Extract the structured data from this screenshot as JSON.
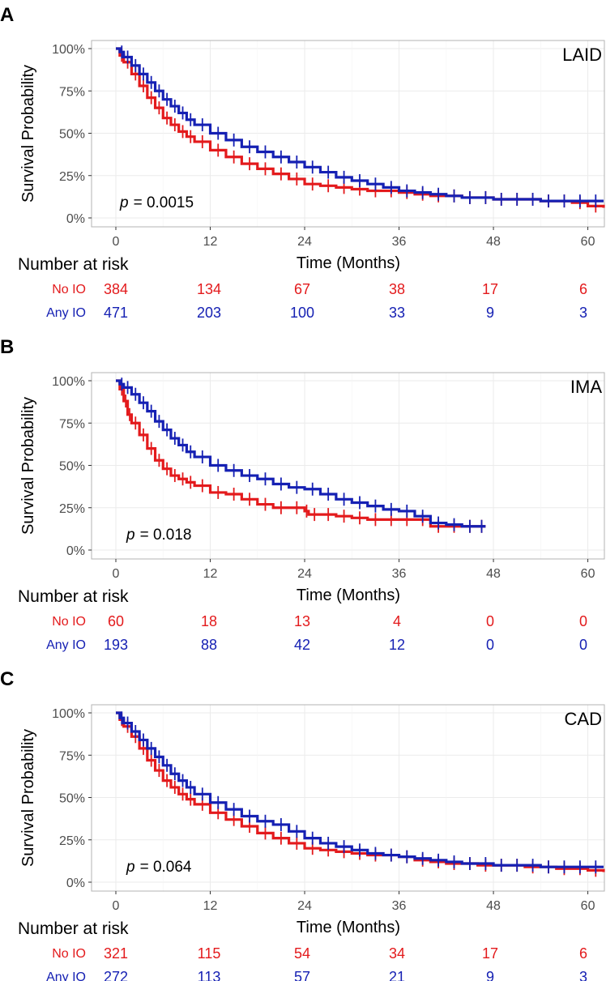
{
  "chart_data": [
    {
      "type": "line",
      "panel_letter": "A",
      "tag": "LAID",
      "p_label": "p",
      "p_value": "= 0.0015",
      "xlabel": "Time (Months)",
      "ylabel": "Survival Probability",
      "xlim": [
        0,
        62
      ],
      "ylim": [
        0,
        1
      ],
      "x_ticks": [
        0,
        12,
        24,
        36,
        48,
        60
      ],
      "x_tick_labels": [
        "0",
        "12",
        "24",
        "36",
        "48",
        "60"
      ],
      "y_ticks": [
        0,
        0.25,
        0.5,
        0.75,
        1.0
      ],
      "y_tick_labels": [
        "0%",
        "25%",
        "50%",
        "75%",
        "100%"
      ],
      "grid": true,
      "series": [
        {
          "name": "No IO",
          "color": "#e31a1c",
          "x": [
            0,
            0.5,
            1,
            2,
            3,
            4,
            5,
            6,
            7,
            8,
            9,
            10,
            12,
            14,
            16,
            18,
            20,
            22,
            24,
            26,
            28,
            30,
            32,
            34,
            36,
            38,
            40,
            42,
            44,
            46,
            48,
            50,
            52,
            54,
            56,
            58,
            60,
            62
          ],
          "y": [
            1.0,
            0.96,
            0.92,
            0.85,
            0.78,
            0.71,
            0.65,
            0.59,
            0.55,
            0.51,
            0.48,
            0.45,
            0.4,
            0.36,
            0.32,
            0.29,
            0.26,
            0.23,
            0.2,
            0.19,
            0.18,
            0.17,
            0.16,
            0.16,
            0.15,
            0.14,
            0.13,
            0.13,
            0.12,
            0.12,
            0.11,
            0.11,
            0.11,
            0.1,
            0.1,
            0.09,
            0.07,
            0.06
          ]
        },
        {
          "name": "Any IO",
          "color": "#1520b3",
          "x": [
            0,
            0.5,
            1,
            2,
            3,
            4,
            5,
            6,
            7,
            8,
            9,
            10,
            12,
            14,
            16,
            18,
            20,
            22,
            24,
            26,
            28,
            30,
            32,
            34,
            36,
            38,
            40,
            42,
            44,
            46,
            48,
            50,
            52,
            54,
            56,
            58,
            60,
            62
          ],
          "y": [
            1.0,
            0.98,
            0.95,
            0.9,
            0.85,
            0.8,
            0.75,
            0.7,
            0.66,
            0.62,
            0.58,
            0.55,
            0.5,
            0.46,
            0.42,
            0.39,
            0.36,
            0.33,
            0.3,
            0.27,
            0.24,
            0.22,
            0.2,
            0.18,
            0.16,
            0.15,
            0.14,
            0.13,
            0.12,
            0.12,
            0.11,
            0.11,
            0.11,
            0.1,
            0.1,
            0.1,
            0.1,
            0.1
          ]
        }
      ],
      "risk_table": {
        "title": "Number at risk",
        "rows": [
          {
            "name": "No IO",
            "color": "#e31a1c",
            "values": [
              "384",
              "134",
              "67",
              "38",
              "17",
              "6"
            ]
          },
          {
            "name": "Any IO",
            "color": "#1520b3",
            "values": [
              "471",
              "203",
              "100",
              "33",
              "9",
              "3"
            ]
          }
        ]
      }
    },
    {
      "type": "line",
      "panel_letter": "B",
      "tag": "IMA",
      "p_label": "p",
      "p_value": "= 0.018",
      "xlabel": "Time (Months)",
      "ylabel": "Survival Probability",
      "xlim": [
        0,
        62
      ],
      "ylim": [
        0,
        1
      ],
      "x_ticks": [
        0,
        12,
        24,
        36,
        48,
        60
      ],
      "x_tick_labels": [
        "0",
        "12",
        "24",
        "36",
        "48",
        "60"
      ],
      "y_ticks": [
        0,
        0.25,
        0.5,
        0.75,
        1.0
      ],
      "y_tick_labels": [
        "0%",
        "25%",
        "50%",
        "75%",
        "100%"
      ],
      "grid": true,
      "series": [
        {
          "name": "No IO",
          "color": "#e31a1c",
          "x": [
            0,
            0.5,
            1,
            1.5,
            2,
            3,
            4,
            5,
            6,
            7,
            8,
            9,
            10,
            12,
            14,
            16,
            18,
            20,
            22,
            24,
            24.5,
            26,
            28,
            30,
            32,
            34,
            36,
            38,
            40,
            42,
            44,
            46,
            47
          ],
          "y": [
            1.0,
            0.95,
            0.88,
            0.8,
            0.75,
            0.68,
            0.6,
            0.53,
            0.48,
            0.44,
            0.42,
            0.4,
            0.38,
            0.34,
            0.33,
            0.3,
            0.27,
            0.25,
            0.25,
            0.23,
            0.21,
            0.21,
            0.2,
            0.19,
            0.18,
            0.18,
            0.18,
            0.18,
            0.14,
            0.14,
            0.14,
            0.14,
            0.14
          ]
        },
        {
          "name": "Any IO",
          "color": "#1520b3",
          "x": [
            0,
            0.5,
            1,
            2,
            3,
            4,
            5,
            6,
            7,
            8,
            9,
            10,
            12,
            14,
            16,
            18,
            20,
            22,
            24,
            26,
            28,
            30,
            32,
            34,
            36,
            38,
            40,
            42,
            44,
            46,
            47
          ],
          "y": [
            1.0,
            0.98,
            0.96,
            0.92,
            0.87,
            0.82,
            0.76,
            0.71,
            0.66,
            0.62,
            0.58,
            0.55,
            0.5,
            0.47,
            0.44,
            0.42,
            0.39,
            0.37,
            0.36,
            0.33,
            0.3,
            0.28,
            0.26,
            0.24,
            0.23,
            0.2,
            0.16,
            0.15,
            0.14,
            0.14,
            0.14
          ]
        }
      ],
      "risk_table": {
        "title": "Number at risk",
        "rows": [
          {
            "name": "No IO",
            "color": "#e31a1c",
            "values": [
              "60",
              "18",
              "13",
              "4",
              "0",
              "0"
            ]
          },
          {
            "name": "Any IO",
            "color": "#1520b3",
            "values": [
              "193",
              "88",
              "42",
              "12",
              "0",
              "0"
            ]
          }
        ]
      }
    },
    {
      "type": "line",
      "panel_letter": "C",
      "tag": "CAD",
      "p_label": "p",
      "p_value": "= 0.064",
      "xlabel": "Time (Months)",
      "ylabel": "Survival Probability",
      "xlim": [
        0,
        62
      ],
      "ylim": [
        0,
        1
      ],
      "x_ticks": [
        0,
        12,
        24,
        36,
        48,
        60
      ],
      "x_tick_labels": [
        "0",
        "12",
        "24",
        "36",
        "48",
        "60"
      ],
      "y_ticks": [
        0,
        0.25,
        0.5,
        0.75,
        1.0
      ],
      "y_tick_labels": [
        "0%",
        "25%",
        "50%",
        "75%",
        "100%"
      ],
      "grid": true,
      "series": [
        {
          "name": "No IO",
          "color": "#e31a1c",
          "x": [
            0,
            0.5,
            1,
            2,
            3,
            4,
            5,
            6,
            7,
            8,
            9,
            10,
            12,
            14,
            16,
            18,
            20,
            22,
            24,
            26,
            28,
            30,
            32,
            34,
            36,
            38,
            40,
            42,
            44,
            46,
            48,
            50,
            52,
            54,
            56,
            58,
            60,
            62
          ],
          "y": [
            1.0,
            0.96,
            0.92,
            0.86,
            0.79,
            0.72,
            0.66,
            0.6,
            0.56,
            0.52,
            0.49,
            0.46,
            0.41,
            0.37,
            0.33,
            0.29,
            0.26,
            0.23,
            0.2,
            0.19,
            0.18,
            0.17,
            0.16,
            0.16,
            0.15,
            0.13,
            0.12,
            0.11,
            0.11,
            0.1,
            0.1,
            0.1,
            0.09,
            0.09,
            0.08,
            0.08,
            0.07,
            0.06
          ]
        },
        {
          "name": "Any IO",
          "color": "#1520b3",
          "x": [
            0,
            0.5,
            1,
            2,
            3,
            4,
            5,
            6,
            7,
            8,
            9,
            10,
            12,
            14,
            16,
            18,
            20,
            22,
            24,
            26,
            28,
            30,
            32,
            34,
            36,
            38,
            40,
            42,
            44,
            46,
            48,
            50,
            52,
            54,
            56,
            58,
            60,
            62
          ],
          "y": [
            1.0,
            0.97,
            0.94,
            0.89,
            0.84,
            0.79,
            0.74,
            0.69,
            0.64,
            0.6,
            0.56,
            0.52,
            0.47,
            0.43,
            0.39,
            0.36,
            0.34,
            0.3,
            0.26,
            0.23,
            0.21,
            0.19,
            0.17,
            0.16,
            0.15,
            0.14,
            0.13,
            0.12,
            0.11,
            0.11,
            0.1,
            0.1,
            0.1,
            0.09,
            0.09,
            0.09,
            0.09,
            0.09
          ]
        }
      ],
      "risk_table": {
        "title": "Number at risk",
        "rows": [
          {
            "name": "No IO",
            "color": "#e31a1c",
            "values": [
              "321",
              "115",
              "54",
              "34",
              "17",
              "6"
            ]
          },
          {
            "name": "Any IO",
            "color": "#1520b3",
            "values": [
              "272",
              "113",
              "57",
              "21",
              "9",
              "3"
            ]
          }
        ]
      }
    }
  ]
}
